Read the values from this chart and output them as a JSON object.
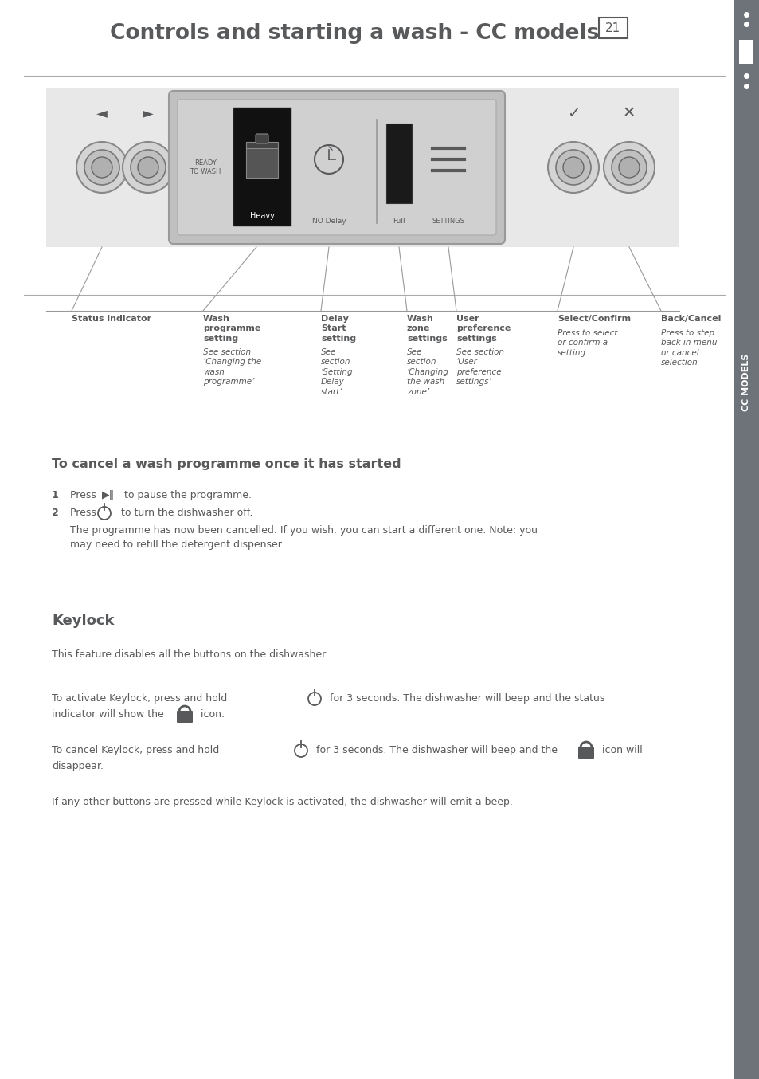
{
  "title": "Controls and starting a wash - CC models",
  "page_num": "21",
  "bg_color": "#ffffff",
  "text_color": "#58595b",
  "sidebar_color": "#6d7378",
  "cancel_section_title": "To cancel a wash programme once it has started",
  "keylock_title": "Keylock",
  "keylock_text1": "This feature disables all the buttons on the dishwasher.",
  "keylock_text4": "If any other buttons are pressed while Keylock is activated, the dishwasher will emit a beep."
}
